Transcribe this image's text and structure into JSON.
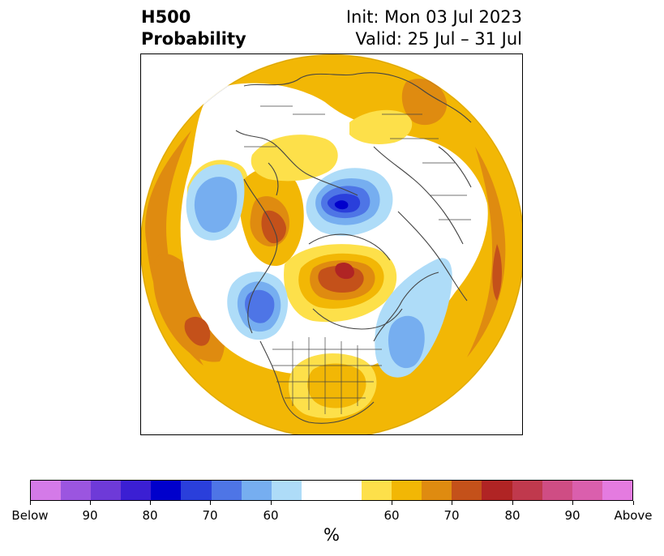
{
  "title": {
    "left_line1": "H500",
    "left_line2": "Probability",
    "right_line1": "Init: Mon 03 Jul 2023",
    "right_line2": "Valid: 25 Jul – 31 Jul"
  },
  "colorbar": {
    "units": "%",
    "colors": [
      "#d47ae8",
      "#9b55e0",
      "#6e3ad8",
      "#3b1fd3",
      "#0000cc",
      "#2a3fdb",
      "#4e75e6",
      "#76aef0",
      "#aedcf8",
      "#ffffff",
      "#ffffff",
      "#fde04a",
      "#f2b705",
      "#df8b10",
      "#c4511a",
      "#b02424",
      "#c0394d",
      "#cf4d84",
      "#da5fad",
      "#e47be0"
    ],
    "tick_labels": [
      "Below",
      "90",
      "80",
      "70",
      "60",
      "60",
      "70",
      "80",
      "90",
      "Above"
    ]
  },
  "map": {
    "projection": "north-polar-stereographic",
    "palette": {
      "white": "#ffffff",
      "yellow": "#fde04a",
      "gold": "#f2b705",
      "orange": "#df8b10",
      "rust": "#c4511a",
      "red": "#b02424",
      "light_blue": "#aedcf8",
      "med_blue": "#76aef0",
      "blue": "#4e75e6",
      "dark_blue": "#2a3fdb",
      "navy": "#0000cc",
      "coastline": "#444444"
    }
  }
}
